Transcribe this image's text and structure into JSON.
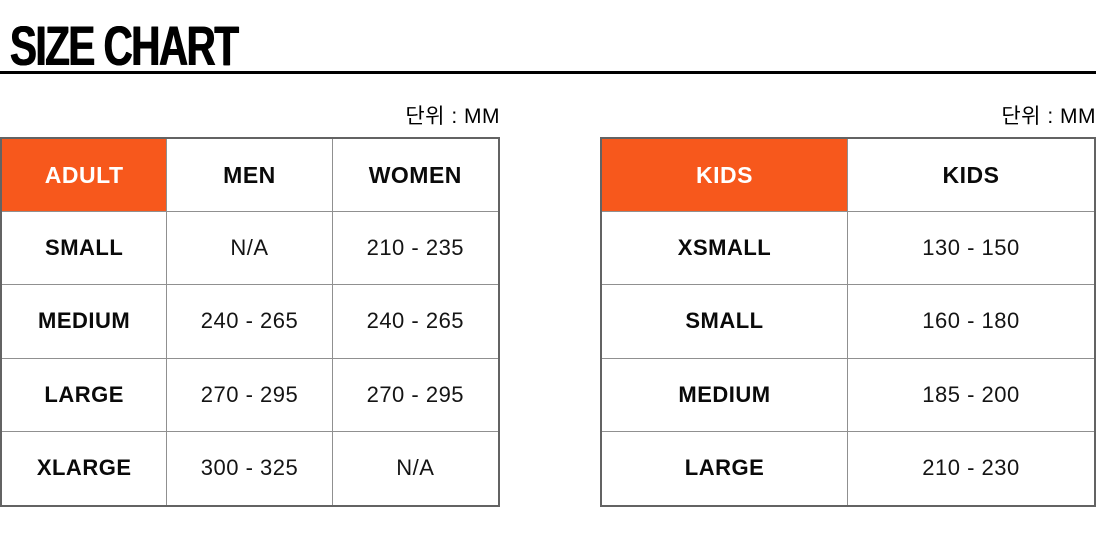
{
  "page": {
    "title": "SIZE CHART"
  },
  "colors": {
    "accent_orange": "#F7581C",
    "title_black": "#000000",
    "inner_border_gray": "#909090",
    "outer_border_gray": "#636363"
  },
  "chart_data": [
    {
      "type": "table",
      "name": "adult_sizes",
      "unit_note": "단위 : MM",
      "unit": "MM",
      "columns": [
        "ADULT",
        "MEN",
        "WOMEN"
      ],
      "rows": [
        [
          "SMALL",
          "N/A",
          "210 - 235"
        ],
        [
          "MEDIUM",
          "240 - 265",
          "240 - 265"
        ],
        [
          "LARGE",
          "270 - 295",
          "270 - 295"
        ],
        [
          "XLARGE",
          "300 - 325",
          "N/A"
        ]
      ]
    },
    {
      "type": "table",
      "name": "kids_sizes",
      "unit_note": "단위 : MM",
      "unit": "MM",
      "columns": [
        "KIDS",
        "KIDS"
      ],
      "rows": [
        [
          "XSMALL",
          "130 - 150"
        ],
        [
          "SMALL",
          "160 - 180"
        ],
        [
          "MEDIUM",
          "185 - 200"
        ],
        [
          "LARGE",
          "210 - 230"
        ]
      ]
    }
  ]
}
